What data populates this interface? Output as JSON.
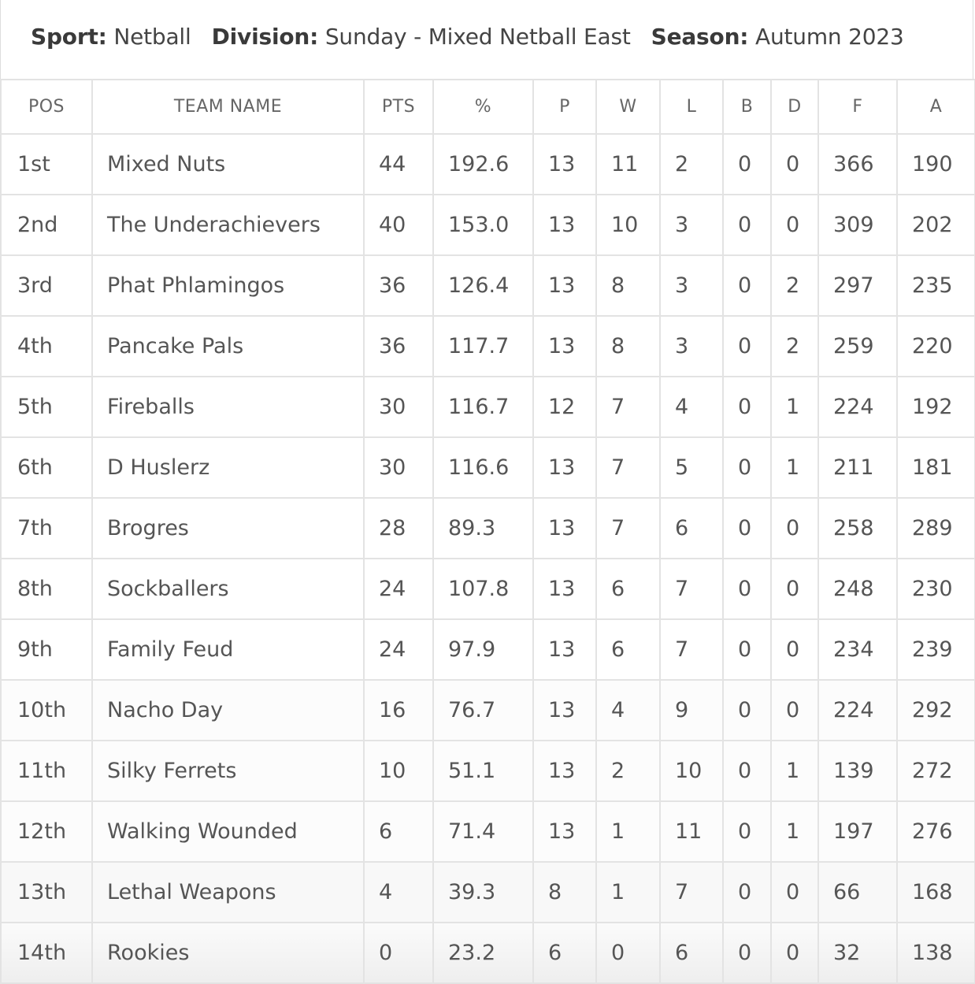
{
  "header": {
    "sport_label": "Sport:",
    "sport_value": "Netball",
    "division_label": "Division:",
    "division_value": "Sunday - Mixed Netball East",
    "season_label": "Season:",
    "season_value": "Autumn 2023"
  },
  "table": {
    "columns": [
      "POS",
      "TEAM NAME",
      "PTS",
      "%",
      "P",
      "W",
      "L",
      "B",
      "D",
      "F",
      "A"
    ],
    "rows": [
      [
        "1st",
        "Mixed Nuts",
        "44",
        "192.6",
        "13",
        "11",
        "2",
        "0",
        "0",
        "366",
        "190"
      ],
      [
        "2nd",
        "The Underachievers",
        "40",
        "153.0",
        "13",
        "10",
        "3",
        "0",
        "0",
        "309",
        "202"
      ],
      [
        "3rd",
        "Phat Phlamingos",
        "36",
        "126.4",
        "13",
        "8",
        "3",
        "0",
        "2",
        "297",
        "235"
      ],
      [
        "4th",
        "Pancake Pals",
        "36",
        "117.7",
        "13",
        "8",
        "3",
        "0",
        "2",
        "259",
        "220"
      ],
      [
        "5th",
        "Fireballs",
        "30",
        "116.7",
        "12",
        "7",
        "4",
        "0",
        "1",
        "224",
        "192"
      ],
      [
        "6th",
        "D Huslerz",
        "30",
        "116.6",
        "13",
        "7",
        "5",
        "0",
        "1",
        "211",
        "181"
      ],
      [
        "7th",
        "Brogres",
        "28",
        "89.3",
        "13",
        "7",
        "6",
        "0",
        "0",
        "258",
        "289"
      ],
      [
        "8th",
        "Sockballers",
        "24",
        "107.8",
        "13",
        "6",
        "7",
        "0",
        "0",
        "248",
        "230"
      ],
      [
        "9th",
        "Family Feud",
        "24",
        "97.9",
        "13",
        "6",
        "7",
        "0",
        "0",
        "234",
        "239"
      ],
      [
        "10th",
        "Nacho Day",
        "16",
        "76.7",
        "13",
        "4",
        "9",
        "0",
        "0",
        "224",
        "292"
      ],
      [
        "11th",
        "Silky Ferrets",
        "10",
        "51.1",
        "13",
        "2",
        "10",
        "0",
        "1",
        "139",
        "272"
      ],
      [
        "12th",
        "Walking Wounded",
        "6",
        "71.4",
        "13",
        "1",
        "11",
        "0",
        "1",
        "197",
        "276"
      ],
      [
        "13th",
        "Lethal Weapons",
        "4",
        "39.3",
        "8",
        "1",
        "7",
        "0",
        "0",
        "66",
        "168"
      ],
      [
        "14th",
        "Rookies",
        "0",
        "23.2",
        "6",
        "0",
        "6",
        "0",
        "0",
        "32",
        "138"
      ]
    ]
  }
}
